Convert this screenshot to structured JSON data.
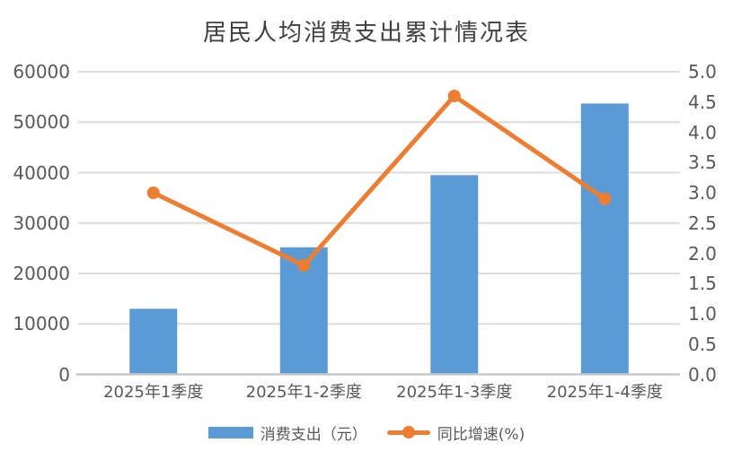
{
  "chart_data": {
    "type": "bar",
    "title": "居民人均消费支出累计情况表",
    "categories": [
      "2025年1季度",
      "2025年1-2季度",
      "2025年1-3季度",
      "2025年1-4季度"
    ],
    "series": [
      {
        "name": "消费支出（元）",
        "series_type": "bar",
        "axis": "left",
        "color": "#5B9BD5",
        "values": [
          13000,
          25200,
          39500,
          53700
        ]
      },
      {
        "name": "同比增速(%)",
        "series_type": "line",
        "axis": "right",
        "color": "#ED7D31",
        "values": [
          3.0,
          1.8,
          4.6,
          2.9
        ]
      }
    ],
    "left_axis": {
      "min": 0,
      "max": 60000,
      "step": 10000,
      "tick_labels": [
        "0",
        "10000",
        "20000",
        "30000",
        "40000",
        "50000",
        "60000"
      ]
    },
    "right_axis": {
      "min": 0,
      "max": 5.0,
      "step": 0.5,
      "tick_labels": [
        "0.0",
        "0.5",
        "1.0",
        "1.5",
        "2.0",
        "2.5",
        "3.0",
        "3.5",
        "4.0",
        "4.5",
        "5.0"
      ]
    },
    "grid": true,
    "legend_position": "bottom"
  },
  "colors": {
    "bar": "#5B9BD5",
    "line": "#ED7D31",
    "gridline": "#DCDCDC",
    "axis_line": "#C8C8C8",
    "tick_label": "#595959",
    "title": "#404040",
    "background": "#FFFFFF"
  }
}
